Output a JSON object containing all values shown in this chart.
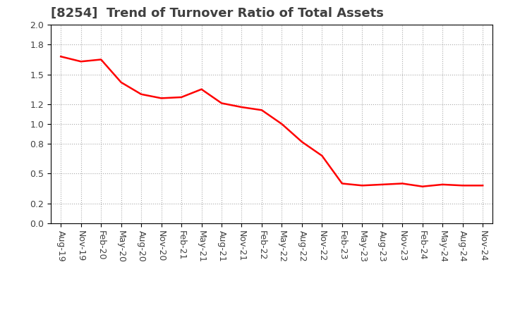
{
  "title": "[8254]  Trend of Turnover Ratio of Total Assets",
  "x_labels": [
    "Aug-19",
    "Nov-19",
    "Feb-20",
    "May-20",
    "Aug-20",
    "Nov-20",
    "Feb-21",
    "May-21",
    "Aug-21",
    "Nov-21",
    "Feb-22",
    "May-22",
    "Aug-22",
    "Nov-22",
    "Feb-23",
    "May-23",
    "Aug-23",
    "Nov-23",
    "Feb-24",
    "May-24",
    "Aug-24",
    "Nov-24"
  ],
  "values": [
    1.68,
    1.63,
    1.65,
    1.42,
    1.3,
    1.26,
    1.27,
    1.35,
    1.21,
    1.17,
    1.14,
    1.0,
    0.82,
    0.68,
    0.4,
    0.38,
    0.39,
    0.4,
    0.37,
    0.39,
    0.38,
    0.38
  ],
  "line_color": "#FF0000",
  "line_width": 1.8,
  "ylim": [
    0.0,
    2.0
  ],
  "yticks": [
    0.0,
    0.2,
    0.5,
    0.8,
    1.0,
    1.2,
    1.5,
    1.8,
    2.0
  ],
  "background_color": "#FFFFFF",
  "grid_color": "#AAAAAA",
  "title_fontsize": 13,
  "tick_fontsize": 9,
  "title_color": "#404040"
}
